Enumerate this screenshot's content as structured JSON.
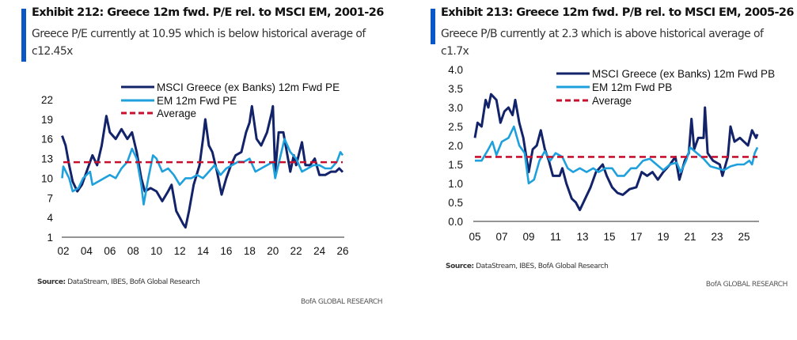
{
  "colors": {
    "greece": "#13236a",
    "em": "#1ea0dd",
    "average": "#c8102e",
    "accent": "#0a57c8"
  },
  "brand": "BofA GLOBAL RESEARCH",
  "chart_data": [
    {
      "type": "line",
      "title": "Exhibit 212: Greece 12m fwd. P/E rel. to MSCI EM, 2001-26",
      "subtitle": "Greece P/E currently at 10.95 which is below historical average of c12.45x",
      "source_label": "Source:",
      "source": " DataStream, IBES, BofA Global Research",
      "ylim": [
        1,
        22
      ],
      "yticks": [
        "22",
        "19",
        "16",
        "13",
        "10",
        "7",
        "4",
        "1"
      ],
      "ytick_values": [
        22,
        19,
        16,
        13,
        10,
        7,
        4,
        1
      ],
      "xlim": [
        2002,
        2026
      ],
      "xticks": [
        "02",
        "04",
        "06",
        "08",
        "10",
        "12",
        "14",
        "16",
        "18",
        "20",
        "22",
        "24",
        "26"
      ],
      "xtick_values": [
        2002,
        2004,
        2006,
        2008,
        2010,
        2012,
        2014,
        2016,
        2018,
        2020,
        2022,
        2024,
        2026
      ],
      "series": [
        {
          "name": "MSCI Greece (ex Banks) 12m Fwd PE",
          "key": "greece",
          "x": [
            2001.9,
            2002.2,
            2002.5,
            2002.8,
            2003.2,
            2003.6,
            2004,
            2004.5,
            2004.9,
            2005.3,
            2005.7,
            2006,
            2006.5,
            2007,
            2007.5,
            2007.9,
            2008.3,
            2008.7,
            2009,
            2009.5,
            2010,
            2010.5,
            2011,
            2011.3,
            2011.7,
            2012,
            2012.3,
            2012.5,
            2012.8,
            2013.2,
            2013.7,
            2014,
            2014.2,
            2014.5,
            2014.8,
            2015.2,
            2015.6,
            2016,
            2016.4,
            2016.8,
            2017.3,
            2017.7,
            2018,
            2018.2,
            2018.6,
            2019,
            2019.5,
            2019.9,
            2020,
            2020.2,
            2020.5,
            2020.9,
            2021.2,
            2021.5,
            2021.8,
            2022,
            2022.5,
            2022.8,
            2023.2,
            2023.6,
            2024,
            2024.5,
            2025,
            2025.4,
            2025.7,
            2026
          ],
          "y": [
            16.5,
            15,
            12,
            9.5,
            8,
            9,
            11,
            13.5,
            12,
            15,
            19.5,
            17,
            16,
            17.5,
            16,
            17,
            14,
            10,
            8,
            8.5,
            8,
            6.5,
            8,
            9,
            5,
            4,
            3,
            2.5,
            5,
            9,
            12,
            16,
            19,
            15,
            14,
            11,
            7.5,
            10,
            12,
            13.5,
            14,
            17,
            18.5,
            21,
            16,
            15,
            17,
            20,
            21,
            11,
            17,
            17,
            14,
            11,
            13.5,
            12,
            15.5,
            12,
            12,
            13,
            10.5,
            10.5,
            11,
            11,
            11.5,
            10.95
          ]
        },
        {
          "name": "EM 12m Fwd PE",
          "key": "em",
          "x": [
            2001.9,
            2002,
            2002.5,
            2002.8,
            2003.3,
            2003.7,
            2004.3,
            2004.5,
            2005,
            2005.5,
            2006,
            2006.5,
            2007,
            2007.5,
            2007.9,
            2008.3,
            2008.7,
            2008.9,
            2009.3,
            2009.7,
            2010,
            2010.5,
            2011,
            2011.5,
            2012,
            2012.5,
            2013,
            2013.5,
            2014,
            2014.5,
            2015,
            2015.5,
            2016,
            2016.5,
            2017,
            2017.5,
            2018,
            2018.5,
            2019,
            2019.5,
            2020,
            2020.2,
            2020.6,
            2021,
            2021.5,
            2022,
            2022.5,
            2023,
            2023.5,
            2024,
            2024.5,
            2025,
            2025.5,
            2025.8,
            2026
          ],
          "y": [
            10,
            11.8,
            10,
            8,
            8.5,
            10,
            11,
            9,
            9.5,
            10,
            10.5,
            10,
            11.5,
            12.5,
            14.5,
            13,
            9,
            6,
            10,
            13.5,
            13,
            11,
            11.5,
            10.5,
            9,
            10,
            10,
            10.5,
            10,
            11,
            12,
            10.5,
            11.5,
            12,
            12.5,
            12.5,
            13,
            11,
            11.5,
            12,
            12.5,
            10,
            13,
            16,
            14,
            13,
            11,
            11.5,
            12,
            12,
            11.5,
            11.5,
            12.5,
            14,
            13.5
          ]
        },
        {
          "name": "Average",
          "key": "average",
          "value": 12.45
        }
      ],
      "legend": "top-center"
    },
    {
      "type": "line",
      "title": "Exhibit 213: Greece 12m fwd. P/B rel. to MSCI EM, 2005-26",
      "subtitle": "Greece P/B currently at 2.3 which is above historical average of c1.7x",
      "source_label": "Source:",
      "source": " DataStream, IBES, BofA Global Research",
      "ylim": [
        0,
        4
      ],
      "yticks": [
        "4.0",
        "3.5",
        "3.0",
        "2.5",
        "2.0",
        "1.5",
        "1.0",
        "0.5",
        "0.0"
      ],
      "ytick_values": [
        4,
        3.5,
        3,
        2.5,
        2,
        1.5,
        1,
        0.5,
        0
      ],
      "xlim": [
        2005,
        2026
      ],
      "xticks": [
        "05",
        "07",
        "09",
        "11",
        "13",
        "15",
        "17",
        "19",
        "21",
        "23",
        "25"
      ],
      "xtick_values": [
        2005,
        2007,
        2009,
        2011,
        2013,
        2015,
        2017,
        2019,
        2021,
        2023,
        2025
      ],
      "series": [
        {
          "name": "MSCI Greece (ex Banks) 12m Fwd PB",
          "key": "greece",
          "x": [
            2005,
            2005.2,
            2005.5,
            2005.8,
            2006,
            2006.2,
            2006.6,
            2006.9,
            2007.2,
            2007.5,
            2007.8,
            2008,
            2008.3,
            2008.6,
            2009,
            2009.3,
            2009.6,
            2009.9,
            2010.2,
            2010.5,
            2010.8,
            2011.3,
            2011.5,
            2011.8,
            2012.2,
            2012.5,
            2012.8,
            2013.2,
            2013.6,
            2014,
            2014.5,
            2014.8,
            2015.2,
            2015.6,
            2016,
            2016.5,
            2017,
            2017.4,
            2017.8,
            2018.2,
            2018.6,
            2019,
            2019.5,
            2019.9,
            2020.2,
            2020.6,
            2020.9,
            2021.1,
            2021.3,
            2021.6,
            2022,
            2022.1,
            2022.3,
            2022.7,
            2023.2,
            2023.4,
            2023.8,
            2024,
            2024.3,
            2024.7,
            2025,
            2025.3,
            2025.6,
            2025.9,
            2026
          ],
          "y": [
            2.2,
            2.6,
            2.5,
            3.2,
            3.0,
            3.35,
            3.2,
            2.6,
            2.9,
            3.0,
            2.8,
            3.2,
            2.6,
            2.2,
            1.3,
            1.9,
            2.0,
            2.4,
            1.9,
            1.6,
            1.2,
            1.2,
            1.4,
            1.0,
            0.6,
            0.5,
            0.3,
            0.6,
            0.9,
            1.3,
            1.5,
            1.2,
            0.9,
            0.75,
            0.7,
            0.85,
            0.9,
            1.3,
            1.2,
            1.3,
            1.1,
            1.3,
            1.5,
            1.7,
            1.1,
            1.6,
            1.8,
            2.7,
            1.9,
            2.2,
            2.2,
            3.0,
            1.8,
            1.6,
            1.5,
            1.2,
            1.7,
            2.5,
            2.1,
            2.2,
            2.1,
            2.0,
            2.4,
            2.2,
            2.3
          ]
        },
        {
          "name": "EM 12m Fwd PB",
          "key": "em",
          "x": [
            2005,
            2005.5,
            2006,
            2006.3,
            2006.6,
            2007,
            2007.5,
            2007.9,
            2008.3,
            2008.7,
            2009,
            2009.4,
            2009.8,
            2010.2,
            2010.6,
            2011,
            2011.5,
            2011.9,
            2012.3,
            2012.8,
            2013.3,
            2013.8,
            2014.2,
            2014.7,
            2015.2,
            2015.6,
            2016.1,
            2016.6,
            2017,
            2017.5,
            2018,
            2018.5,
            2019,
            2019.5,
            2020,
            2020.3,
            2020.7,
            2021,
            2021.5,
            2022,
            2022.5,
            2023,
            2023.5,
            2024,
            2024.5,
            2025,
            2025.4,
            2025.6,
            2025.8,
            2026
          ],
          "y": [
            1.6,
            1.6,
            1.9,
            2.1,
            1.75,
            2.1,
            2.2,
            2.5,
            2.0,
            1.8,
            1.0,
            1.1,
            1.6,
            1.85,
            1.6,
            1.8,
            1.7,
            1.4,
            1.3,
            1.4,
            1.3,
            1.4,
            1.3,
            1.4,
            1.4,
            1.2,
            1.2,
            1.4,
            1.4,
            1.6,
            1.65,
            1.5,
            1.35,
            1.5,
            1.55,
            1.3,
            1.6,
            1.95,
            1.8,
            1.65,
            1.45,
            1.4,
            1.35,
            1.45,
            1.5,
            1.5,
            1.6,
            1.5,
            1.8,
            1.95
          ]
        },
        {
          "name": "Average",
          "key": "average",
          "value": 1.7
        }
      ],
      "legend": "top-center"
    }
  ]
}
